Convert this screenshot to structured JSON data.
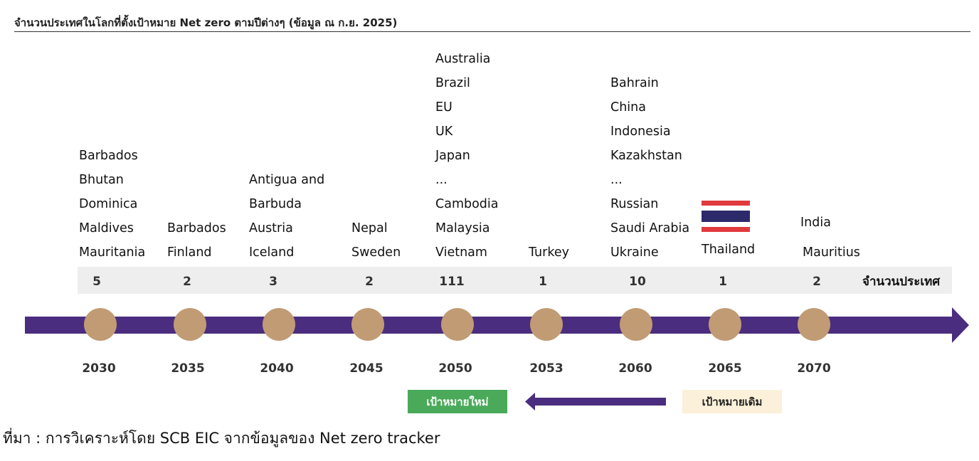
{
  "title": "จำนวนประเทศในโลกที่ตั้งเป้าหมาย Net zero ตามปีต่างๆ (ข้อมูล ณ ก.ย. 2025)",
  "count_label": "จำนวนประเทศ",
  "milestones": [
    {
      "year": "2030",
      "count": "5",
      "countries": [
        "Barbados",
        "Bhutan",
        "Dominica",
        "Maldives",
        "Mauritania"
      ]
    },
    {
      "year": "2035",
      "count": "2",
      "countries": [
        "Barbados",
        "Finland"
      ]
    },
    {
      "year": "2040",
      "count": "3",
      "countries": [
        "Antigua and",
        "Barbuda",
        "Austria",
        "Iceland"
      ]
    },
    {
      "year": "2045",
      "count": "2",
      "countries": [
        "Nepal",
        "Sweden"
      ]
    },
    {
      "year": "2050",
      "count": "111",
      "countries": [
        "Australia",
        "Brazil",
        "EU",
        "UK",
        "Japan",
        "...",
        "Cambodia",
        "Malaysia",
        "Vietnam"
      ]
    },
    {
      "year": "2053",
      "count": "1",
      "countries": [
        "Turkey"
      ]
    },
    {
      "year": "2060",
      "count": "10",
      "countries": [
        "Bahrain",
        "China",
        "Indonesia",
        "Kazakhstan",
        "...",
        "Russian",
        "Saudi Arabia",
        "Ukraine"
      ]
    },
    {
      "year": "2065",
      "count": "1",
      "countries": [
        "Thailand"
      ],
      "flag": "thailand-flag-icon"
    },
    {
      "year": "2070",
      "count": "2",
      "countries": [
        "India",
        "Mauritius"
      ]
    }
  ],
  "legend": {
    "new_target": "เป้าหมายใหม่",
    "old_target": "เป้าหมายเดิม"
  },
  "source": "ที่มา : การวิเคราะห์โดย SCB EIC จากข้อมูลของ Net zero tracker",
  "colors": {
    "timeline": "#4b2d7f",
    "node": "#c09b74",
    "new_target_bg": "#4aaa5a",
    "old_target_bg": "#fbf0d9",
    "count_band": "#eeeeee",
    "flag_red": "#e03a3e",
    "flag_blue": "#2d2a6b"
  }
}
